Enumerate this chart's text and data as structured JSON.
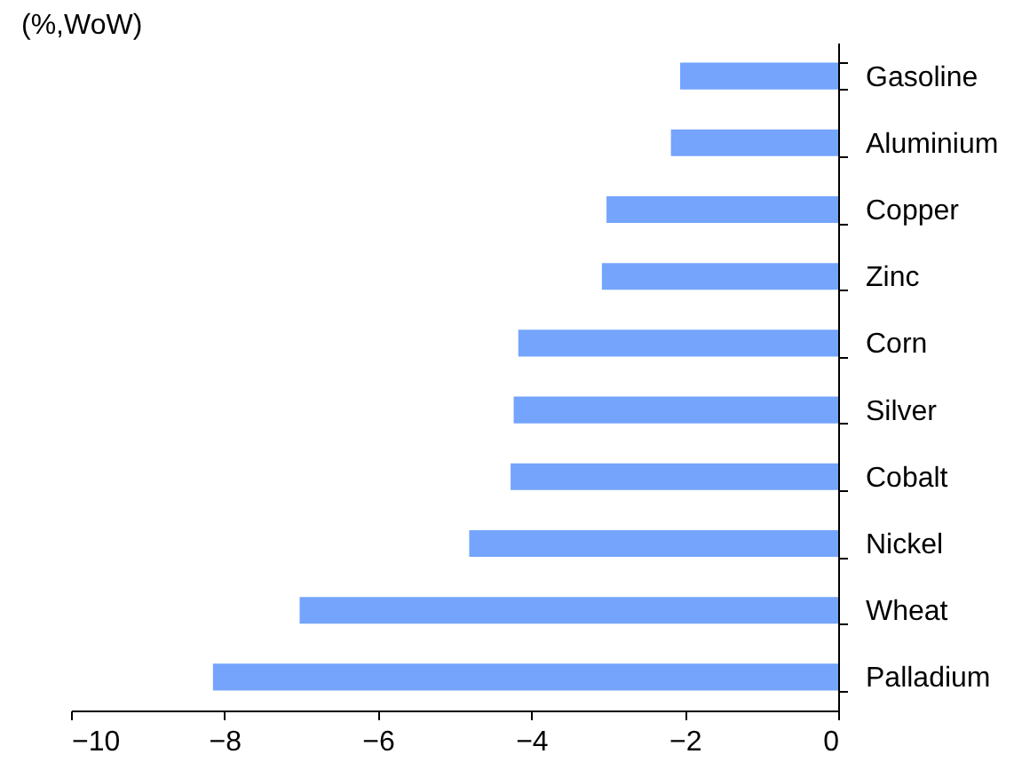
{
  "chart_data": {
    "type": "bar",
    "orientation": "horizontal",
    "title": "(%,WoW)",
    "categories": [
      "Gasoline",
      "Aluminium",
      "Copper",
      "Zinc",
      "Corn",
      "Silver",
      "Cobalt",
      "Nickel",
      "Wheat",
      "Palladium"
    ],
    "values": [
      -2.06,
      -2.18,
      -3.02,
      -3.08,
      -4.17,
      -4.23,
      -4.27,
      -4.81,
      -7.02,
      -8.15
    ],
    "color": "#74a4fc",
    "xlim": [
      -10,
      0
    ],
    "xticks": [
      -10,
      -8,
      -6,
      -4,
      -2,
      0
    ],
    "grid": false
  }
}
